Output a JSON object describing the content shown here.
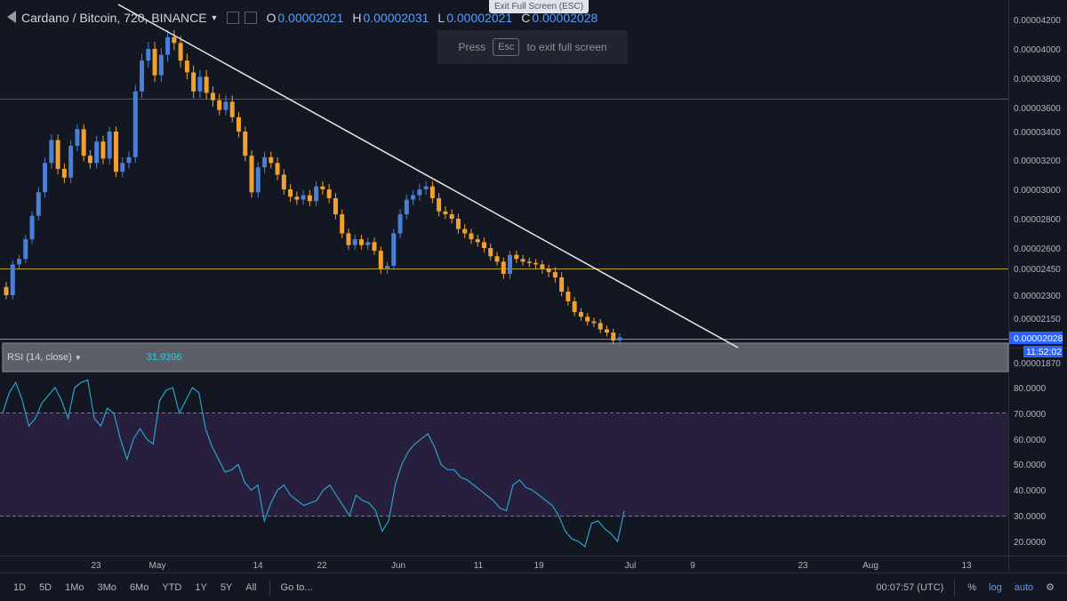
{
  "header": {
    "symbol": "Cardano / Bitcoin, 720, BINANCE",
    "open_label": "O",
    "open_value": "0.00002021",
    "high_label": "H",
    "high_value": "0.00002031",
    "low_label": "L",
    "low_value": "0.00002021",
    "close_label": "C",
    "close_value": "0.00002028"
  },
  "tooltip": "Exit Full Screen (ESC)",
  "fullscreen_banner": {
    "press": "Press",
    "key": "Esc",
    "rest": "to exit full screen"
  },
  "price_badge": "0.00002028",
  "countdown_badge": "11:52:02",
  "rsi": {
    "label": "RSI (14, close)",
    "value": "31.9396"
  },
  "bottom_bar": {
    "timeframes": [
      "1D",
      "5D",
      "1Mo",
      "3Mo",
      "6Mo",
      "YTD",
      "1Y",
      "5Y",
      "All"
    ],
    "goto": "Go to...",
    "clock": "00:07:57 (UTC)",
    "percent": "%",
    "log": "log",
    "auto": "auto"
  },
  "colors": {
    "background": "#131722",
    "up_candle": "#4a7fd6",
    "down_candle": "#f0a132",
    "magenta_line": "#a020a0",
    "yellow_line": "#b8a32a",
    "cyan_line": "#1fb8c8",
    "rsi_line": "#2aa3c7",
    "rsi_band": "#271f3d"
  },
  "chart_data": [
    {
      "type": "candlestick",
      "title": "Cardano / Bitcoin, 720, BINANCE",
      "y_ticks": [
        "0.00004200",
        "0.00004000",
        "0.00003800",
        "0.00003600",
        "0.00003400",
        "0.00003200",
        "0.00003000",
        "0.00002800",
        "0.00002600",
        "0.00002450",
        "0.00002300",
        "0.00002150",
        "0.00001870"
      ],
      "ylim": [
        1.85e-05,
        4.22e-05
      ],
      "x_ticks": [
        "23",
        "May",
        "14",
        "22",
        "Jun",
        "11",
        "19",
        "Jul",
        "9",
        "23",
        "Aug",
        "13"
      ],
      "grid": false,
      "horizontal_lines": [
        3.63e-05,
        2.47e-05,
        2.028e-05
      ],
      "trendline": [
        [
          4.23e-05,
          1.85e-05
        ]
      ],
      "support_zone": [
        1.85e-05,
        2.01e-05
      ],
      "close_path": [
        2.3e-05,
        2.48e-05,
        2.52e-05,
        2.66e-05,
        2.82e-05,
        2.98e-05,
        3.18e-05,
        3.34e-05,
        3.14e-05,
        3.08e-05,
        3.3e-05,
        3.42e-05,
        3.23e-05,
        3.18e-05,
        3.33e-05,
        3.21e-05,
        3.4e-05,
        3.12e-05,
        3.18e-05,
        3.22e-05,
        3.71e-05,
        3.92e-05,
        4e-05,
        3.82e-05,
        3.96e-05,
        4.08e-05,
        4.04e-05,
        3.92e-05,
        3.84e-05,
        3.71e-05,
        3.81e-05,
        3.7e-05,
        3.65e-05,
        3.58e-05,
        3.64e-05,
        3.52e-05,
        3.4e-05,
        3.23e-05,
        2.98e-05,
        3.15e-05,
        3.22e-05,
        3.18e-05,
        3.1e-05,
        3e-05,
        2.95e-05,
        2.93e-05,
        2.96e-05,
        2.92e-05,
        3.02e-05,
        3e-05,
        2.94e-05,
        2.83e-05,
        2.7e-05,
        2.62e-05,
        2.66e-05,
        2.62e-05,
        2.64e-05,
        2.58e-05,
        2.45e-05,
        2.47e-05,
        2.7e-05,
        2.83e-05,
        2.93e-05,
        2.96e-05,
        3e-05,
        3.02e-05,
        2.94e-05,
        2.85e-05,
        2.83e-05,
        2.8e-05,
        2.73e-05,
        2.7e-05,
        2.66e-05,
        2.64e-05,
        2.6e-05,
        2.54e-05,
        2.5e-05,
        2.42e-05,
        2.55e-05,
        2.52e-05,
        2.5e-05,
        2.49e-05,
        2.48e-05,
        2.45e-05,
        2.43e-05,
        2.4e-05,
        2.32e-05,
        2.26e-05,
        2.19e-05,
        2.16e-05,
        2.13e-05,
        2.12e-05,
        2.08e-05,
        2.06e-05,
        2.01e-05,
        2.03e-05
      ]
    },
    {
      "type": "line",
      "title": "RSI (14, close)",
      "y_ticks": [
        "80.0000",
        "70.0000",
        "60.0000",
        "50.0000",
        "40.0000",
        "30.0000",
        "20.0000"
      ],
      "ylim": [
        14.2,
        85.5
      ],
      "bands": [
        30,
        70
      ],
      "x_ticks": [
        "23",
        "May",
        "14",
        "22",
        "Jun",
        "11",
        "19",
        "Jul",
        "9",
        "23",
        "Aug",
        "13"
      ],
      "values": [
        70,
        78,
        82,
        75,
        65,
        68,
        74,
        77,
        80,
        75,
        68,
        80,
        82,
        83,
        68,
        65,
        72,
        70,
        60,
        52,
        60,
        64,
        60,
        58,
        75,
        79,
        80,
        70,
        75,
        80,
        78,
        64,
        57,
        52,
        47,
        48,
        50,
        43,
        40,
        42,
        28,
        35,
        40,
        42,
        38,
        36,
        34,
        35,
        36,
        40,
        42,
        38,
        34,
        30,
        38,
        36,
        35,
        32,
        24,
        28,
        42,
        50,
        55,
        58,
        60,
        62,
        57,
        50,
        48,
        48,
        45,
        44,
        42,
        40,
        38,
        36,
        33,
        32,
        42,
        44,
        41,
        40,
        38,
        36,
        34,
        30,
        24,
        21,
        20,
        18,
        27,
        28,
        25,
        23,
        20,
        31.9
      ]
    }
  ]
}
